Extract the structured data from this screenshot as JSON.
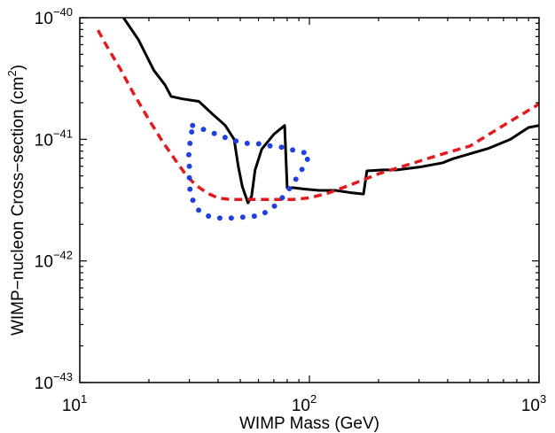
{
  "chart_data": {
    "type": "line",
    "title": "",
    "xlabel": "WIMP Mass (GeV)",
    "ylabel_parts": [
      "WIMP−nucleon  Cross−section (cm",
      "2",
      ")"
    ],
    "x_scale": "log",
    "y_scale": "log",
    "xlim": [
      10,
      1000
    ],
    "ylim": [
      1e-43,
      1e-40
    ],
    "x_ticks": [
      {
        "value": 10,
        "base": "10",
        "exp": "1"
      },
      {
        "value": 100,
        "base": "10",
        "exp": "2"
      },
      {
        "value": 1000,
        "base": "10",
        "exp": "3"
      }
    ],
    "y_ticks": [
      {
        "value": 1e-43,
        "base": "10",
        "exp": "−43"
      },
      {
        "value": 1e-42,
        "base": "10",
        "exp": "−42"
      },
      {
        "value": 1e-41,
        "base": "10",
        "exp": "−41"
      },
      {
        "value": 1e-40,
        "base": "10",
        "exp": "−40"
      }
    ],
    "grid": false,
    "legend": "none",
    "series": [
      {
        "style": "solid",
        "color": "#000000",
        "points": [
          [
            15.5,
            1e-40
          ],
          [
            18.0,
            6.6e-41
          ],
          [
            21.0,
            3.7e-41
          ],
          [
            23.5,
            2.8e-41
          ],
          [
            25.0,
            2.25e-41
          ],
          [
            28.0,
            2.15e-41
          ],
          [
            33.0,
            2.05e-41
          ],
          [
            38.0,
            1.6e-41
          ],
          [
            43.0,
            1.3e-41
          ],
          [
            47.0,
            1e-41
          ],
          [
            49.0,
            6e-42
          ],
          [
            51.0,
            4.1e-42
          ],
          [
            54.0,
            3e-42
          ],
          [
            56.0,
            3.4e-42
          ],
          [
            58.0,
            5.6e-42
          ],
          [
            62.0,
            8.3e-42
          ],
          [
            70.0,
            1.1e-41
          ],
          [
            78.0,
            1.3e-41
          ],
          [
            80.0,
            4e-42
          ],
          [
            85.0,
            4e-42
          ],
          [
            95.0,
            3.9e-42
          ],
          [
            110.0,
            3.8e-42
          ],
          [
            130.0,
            3.8e-42
          ],
          [
            150.0,
            3.65e-42
          ],
          [
            172.0,
            3.55e-42
          ],
          [
            178.0,
            5.5e-42
          ],
          [
            210.0,
            5.6e-42
          ],
          [
            240.0,
            5.6e-42
          ],
          [
            300.0,
            5.9e-42
          ],
          [
            380.0,
            6.4e-42
          ],
          [
            420.0,
            6.9e-42
          ],
          [
            500.0,
            7.6e-42
          ],
          [
            600.0,
            8.4e-42
          ],
          [
            750.0,
            1e-41
          ],
          [
            900.0,
            1.25e-41
          ],
          [
            1000.0,
            1.3e-41
          ]
        ]
      },
      {
        "style": "dashed",
        "color": "#e31a1c",
        "points": [
          [
            12.0,
            7.9e-41
          ],
          [
            13.0,
            6e-41
          ],
          [
            15.0,
            3.8e-41
          ],
          [
            17.0,
            2.45e-41
          ],
          [
            20.0,
            1.45e-41
          ],
          [
            23.0,
            9.5e-42
          ],
          [
            26.0,
            6.8e-42
          ],
          [
            29.0,
            5.1e-42
          ],
          [
            32.0,
            4.2e-42
          ],
          [
            36.0,
            3.6e-42
          ],
          [
            40.0,
            3.3e-42
          ],
          [
            45.0,
            3.2e-42
          ],
          [
            50.0,
            3.2e-42
          ],
          [
            60.0,
            3.2e-42
          ],
          [
            70.0,
            3.2e-42
          ],
          [
            85.0,
            3.2e-42
          ],
          [
            100.0,
            3.3e-42
          ],
          [
            120.0,
            3.6e-42
          ],
          [
            150.0,
            4.2e-42
          ],
          [
            200.0,
            5.2e-42
          ],
          [
            300.0,
            6.6e-42
          ],
          [
            400.0,
            7.8e-42
          ],
          [
            500.0,
            8.8e-42
          ],
          [
            700.0,
            1.3e-41
          ],
          [
            1000.0,
            1.95e-41
          ]
        ]
      },
      {
        "style": "dotted",
        "color": "#1f3fe0",
        "points": [
          [
            31.0,
            1.3e-41
          ],
          [
            37.0,
            1.15e-41
          ],
          [
            42.0,
            1.05e-41
          ],
          [
            51.0,
            9.3e-42
          ],
          [
            60.0,
            9.2e-42
          ],
          [
            68.0,
            8.8e-42
          ],
          [
            76.0,
            8.6e-42
          ],
          [
            86.0,
            8.1e-42
          ],
          [
            97.0,
            7.7e-42
          ],
          [
            100.0,
            7.6e-42
          ],
          [
            97.0,
            6.5e-42
          ],
          [
            92.0,
            5.5e-42
          ],
          [
            86.0,
            4.5e-42
          ],
          [
            80.0,
            3.7e-42
          ],
          [
            73.0,
            3e-42
          ],
          [
            67.0,
            2.6e-42
          ],
          [
            60.0,
            2.35e-42
          ],
          [
            53.0,
            2.3e-42
          ],
          [
            46.0,
            2.25e-42
          ],
          [
            40.0,
            2.25e-42
          ],
          [
            36.0,
            2.35e-42
          ],
          [
            33.0,
            2.6e-42
          ],
          [
            31.5,
            3e-42
          ],
          [
            30.5,
            3.4e-42
          ],
          [
            30.0,
            4.2e-42
          ],
          [
            30.0,
            5e-42
          ],
          [
            30.0,
            6e-42
          ],
          [
            29.8,
            7.2e-42
          ],
          [
            30.0,
            8.6e-42
          ],
          [
            30.5,
            1.05e-41
          ],
          [
            31.0,
            1.3e-41
          ]
        ]
      }
    ]
  }
}
